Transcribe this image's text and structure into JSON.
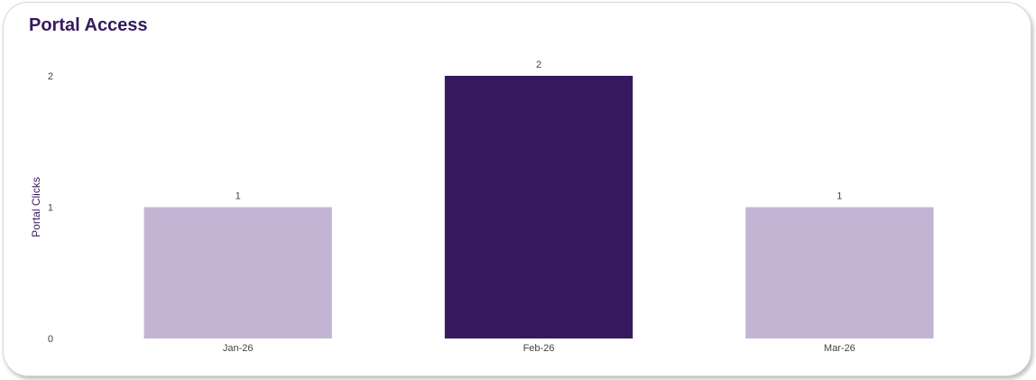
{
  "card": {
    "title": "Portal Access"
  },
  "chart_data": {
    "type": "bar",
    "title": "Portal Access",
    "xlabel": "",
    "ylabel": "Portal Clicks",
    "categories": [
      "Jan-26",
      "Feb-26",
      "Mar-26"
    ],
    "values": [
      1,
      2,
      1
    ],
    "data_labels": [
      "1",
      "2",
      "1"
    ],
    "ylim": [
      0,
      2
    ],
    "yticks": [
      0,
      1,
      2
    ],
    "grid": false,
    "highlight_index": 1,
    "colors": {
      "bar": "#C3B4D4",
      "highlight": "#361A5E",
      "title": "#361A5E"
    }
  }
}
